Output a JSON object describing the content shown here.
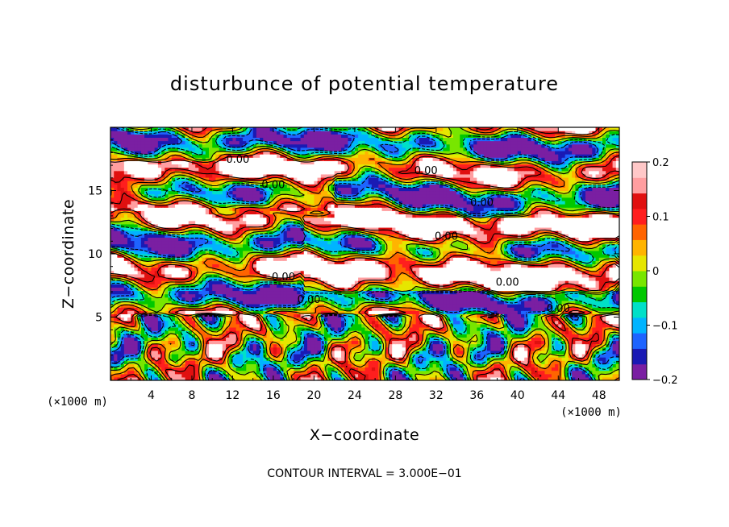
{
  "chart_data": {
    "type": "heatmap",
    "title": "disturbunce of potential temperature",
    "xlabel": "X−coordinate",
    "ylabel": "Z−coordinate",
    "x_unit_label": "(×1000 m)",
    "z_unit_label": "(×1000 m)",
    "xlim": [
      0,
      50
    ],
    "ylim": [
      0,
      20
    ],
    "x_ticks": [
      "4",
      "8",
      "12",
      "16",
      "20",
      "24",
      "28",
      "32",
      "36",
      "40",
      "44",
      "48"
    ],
    "y_ticks": [
      "5",
      "10",
      "15"
    ],
    "colorbar": {
      "ticks": [
        "0.2",
        "0.1",
        "0",
        "−0.1",
        "−0.2"
      ],
      "range": [
        -0.2,
        0.2
      ],
      "colors": [
        "#7a1fa2",
        "#1a1ab4",
        "#1e64ff",
        "#00b4ff",
        "#00e0c8",
        "#00c800",
        "#78e600",
        "#e6e600",
        "#ffb400",
        "#ff6400",
        "#ff1e1e",
        "#e01010",
        "#ff9ea0",
        "#ffc8c8"
      ]
    },
    "contour_label": "0.00",
    "contour_note": "CONTOUR INTERVAL = 3.000E−01",
    "grid": false,
    "legend": "colorbar-right"
  }
}
